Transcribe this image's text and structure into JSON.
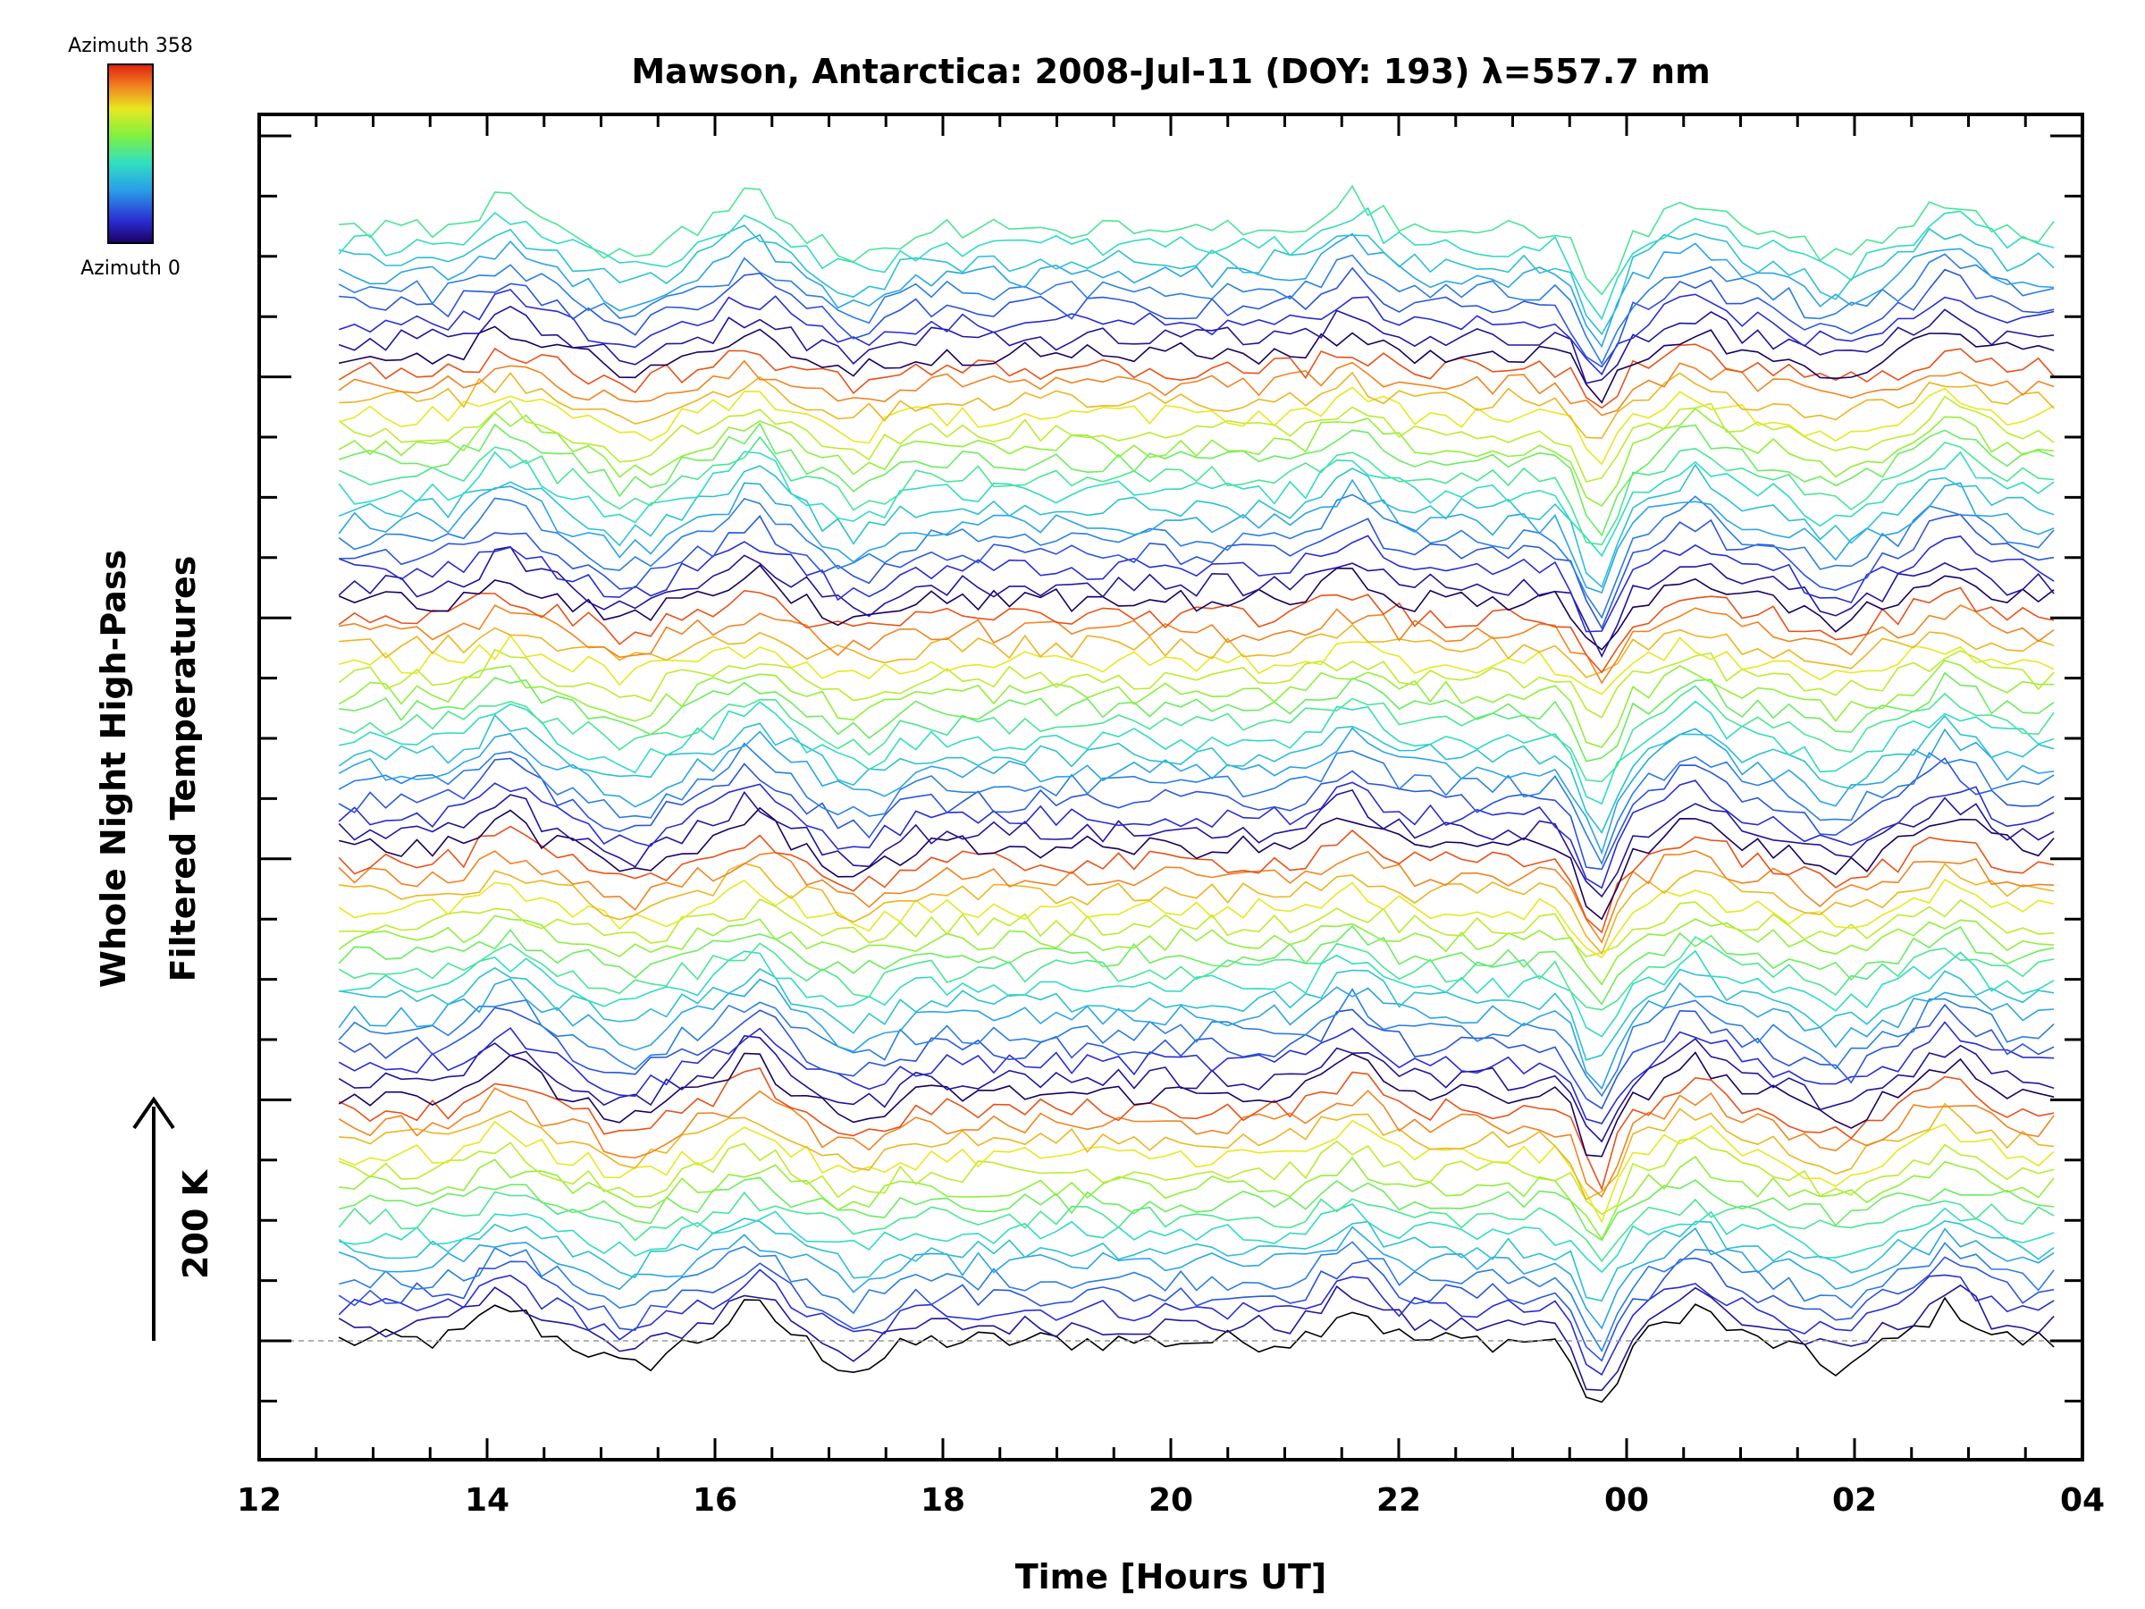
{
  "chart_data": {
    "type": "line",
    "title": "Mawson, Antarctica: 2008-Jul-11 (DOY: 193) λ=557.7 nm",
    "xlabel": "Time [Hours UT]",
    "ylabel_line1": "Whole Night High-Pass",
    "ylabel_line2": "Filtered Temperatures",
    "scale_label": "200 K",
    "x_ticks": [
      "12",
      "14",
      "16",
      "18",
      "20",
      "22",
      "00",
      "02",
      "04"
    ],
    "xlim_hours": [
      12,
      28
    ],
    "data_x_range_hours": [
      12.7,
      27.75
    ],
    "colorbar": {
      "top_label": "Azimuth 358",
      "bottom_label": "Azimuth 0",
      "min": 0,
      "max": 358
    },
    "baseline": "dashed",
    "n_traces": 73,
    "common_features": [
      {
        "time": "14:10",
        "type": "peak"
      },
      {
        "time": "15:15",
        "type": "trough"
      },
      {
        "time": "16:20",
        "type": "peak"
      },
      {
        "time": "17:15",
        "type": "trough"
      },
      {
        "time": "21:35",
        "type": "peak"
      },
      {
        "time": "23:45",
        "type": "deep trough"
      },
      {
        "time": "00:35",
        "type": "peak"
      },
      {
        "time": "01:50",
        "type": "trough"
      },
      {
        "time": "02:50",
        "type": "peak"
      }
    ]
  }
}
